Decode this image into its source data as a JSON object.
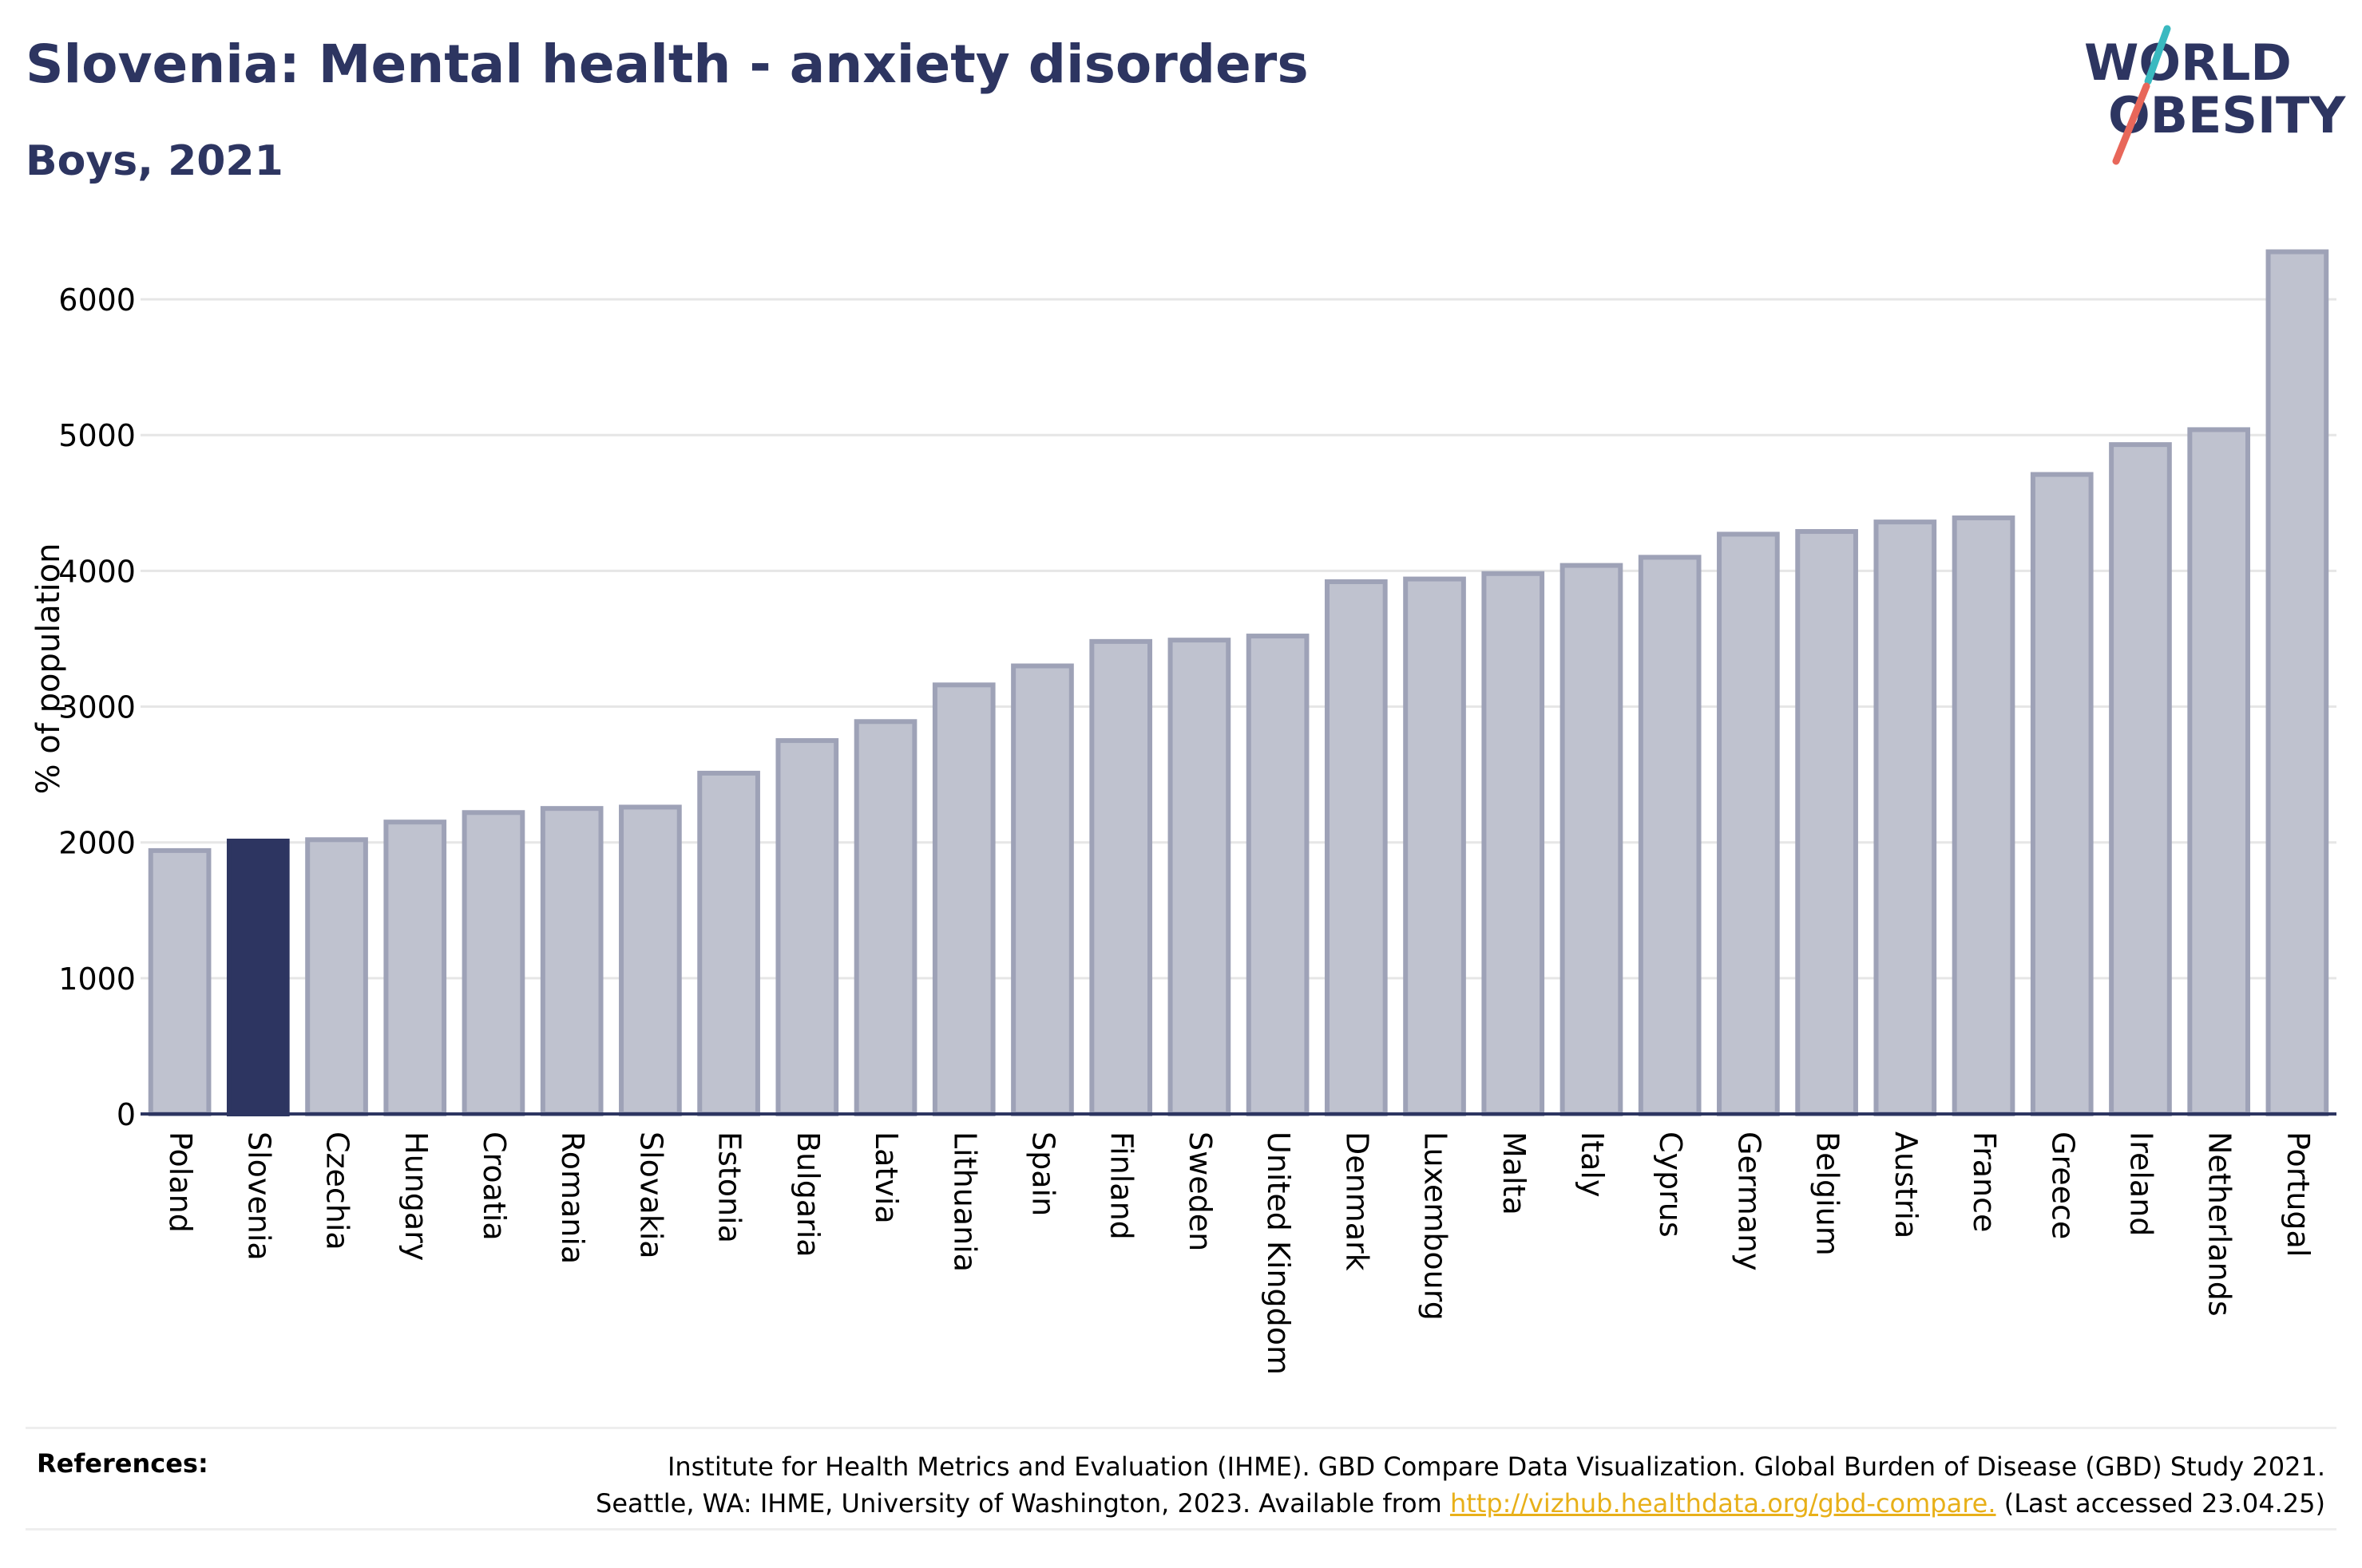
{
  "header": {
    "title": "Slovenia: Mental health - anxiety disorders",
    "subtitle": "Boys, 2021"
  },
  "logo": {
    "line1": "WORLD",
    "line2": "OBESITY",
    "colors": {
      "text": "#2d3561",
      "slash_top": "#3ab9c0",
      "slash_bottom": "#e8675a"
    }
  },
  "chart_data": {
    "type": "bar",
    "title": "Slovenia: Mental health - anxiety disorders",
    "subtitle": "Boys, 2021",
    "xlabel": "",
    "ylabel": "% of population",
    "ylim": [
      0,
      6500
    ],
    "yticks": [
      0,
      1000,
      2000,
      3000,
      4000,
      5000,
      6000
    ],
    "grid": true,
    "highlight": "Slovenia",
    "colors": {
      "bar": "#bfc2cf",
      "bar_edge": "#9ea2b7",
      "highlight": "#2d3561",
      "grid": "#e6e6e6",
      "axis": "#2d3561"
    },
    "categories": [
      "Poland",
      "Slovenia",
      "Czechia",
      "Hungary",
      "Croatia",
      "Romania",
      "Slovakia",
      "Estonia",
      "Bulgaria",
      "Latvia",
      "Lithuania",
      "Spain",
      "Finland",
      "Sweden",
      "United Kingdom",
      "Denmark",
      "Luxembourg",
      "Malta",
      "Italy",
      "Cyprus",
      "Germany",
      "Belgium",
      "Austria",
      "France",
      "Greece",
      "Ireland",
      "Netherlands",
      "Portugal"
    ],
    "values": [
      1940,
      2010,
      2020,
      2150,
      2220,
      2250,
      2260,
      2510,
      2750,
      2890,
      3160,
      3300,
      3480,
      3490,
      3520,
      3920,
      3940,
      3980,
      4040,
      4100,
      4270,
      4290,
      4360,
      4390,
      4710,
      4930,
      5040,
      6350
    ]
  },
  "references": {
    "label": "References:",
    "line1": "Institute for Health Metrics and Evaluation (IHME). GBD Compare Data Visualization. Global Burden of Disease (GBD) Study 2021.",
    "line2_prefix": "Seattle, WA: IHME, University of Washington, 2023. Available from ",
    "link": "http://vizhub.healthdata.org/gbd-compare.",
    "line2_suffix": " (Last accessed 23.04.25)"
  }
}
